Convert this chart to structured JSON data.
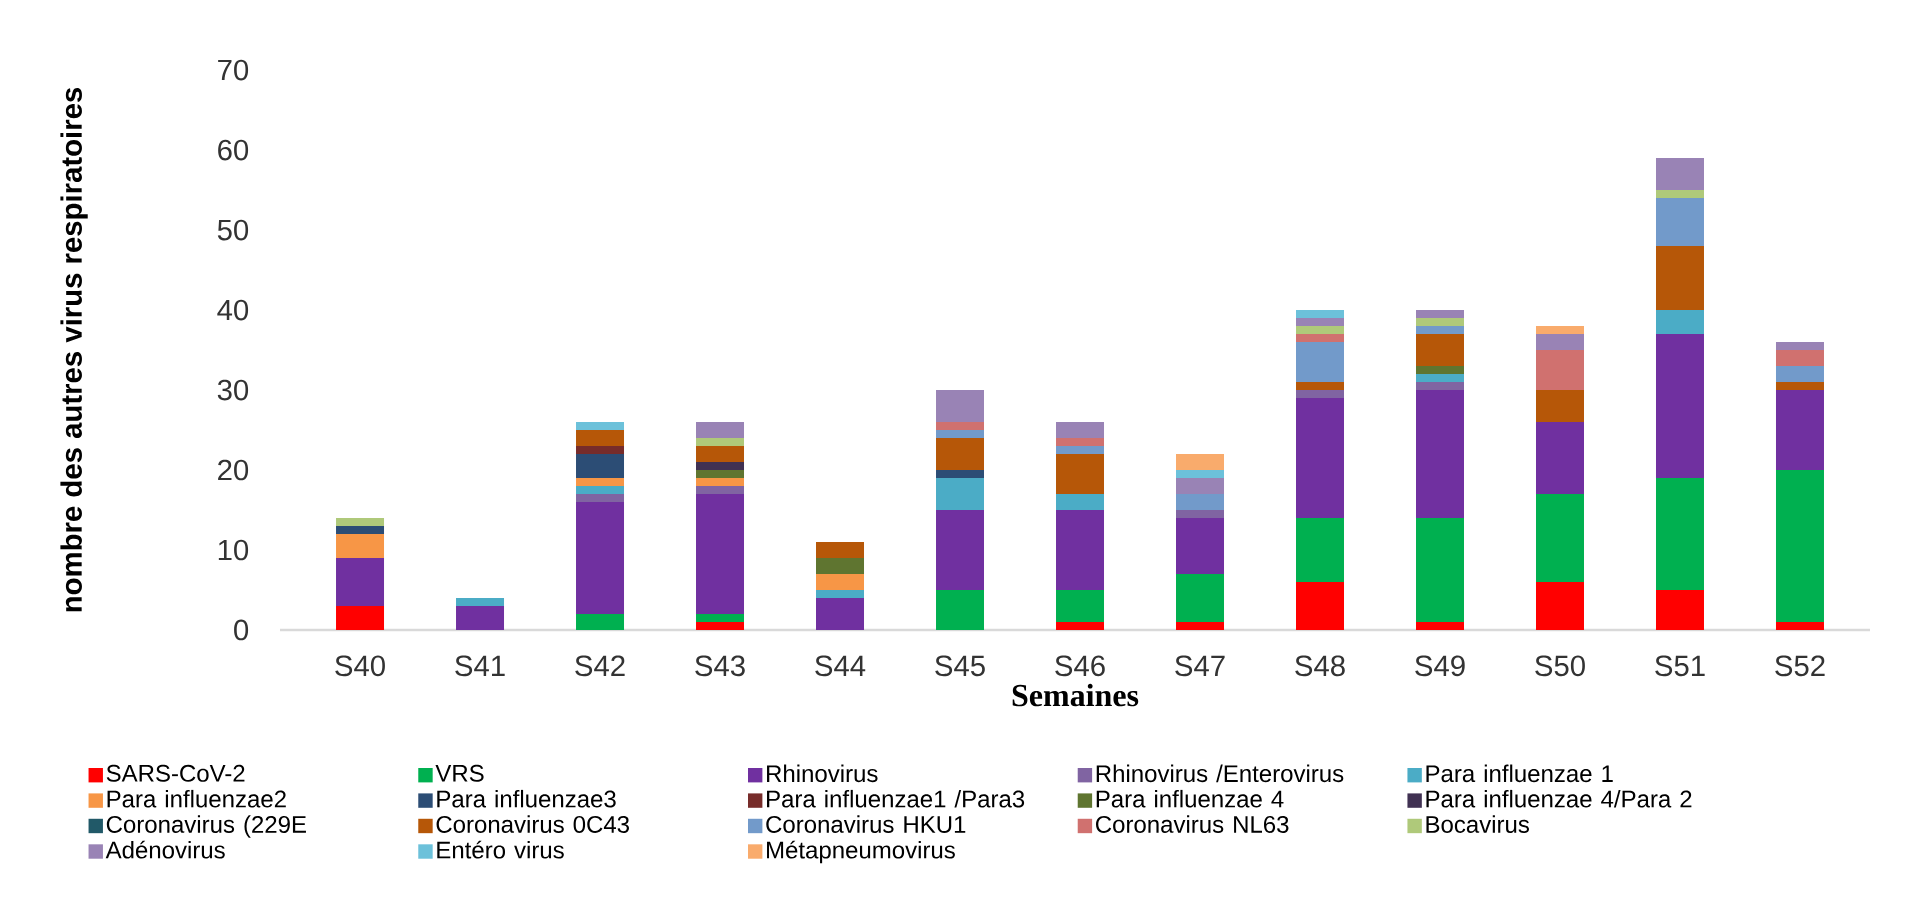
{
  "chart_data": {
    "type": "bar",
    "stacked": true,
    "xlabel": "Semaines",
    "ylabel": "nombre des autres virus respiratoires",
    "categories": [
      "S40",
      "S41",
      "S42",
      "S43",
      "S44",
      "S45",
      "S46",
      "S47",
      "S48",
      "S49",
      "S50",
      "S51",
      "S52"
    ],
    "ylim": [
      0,
      70
    ],
    "yticks": [
      0,
      10,
      20,
      30,
      40,
      50,
      60,
      70
    ],
    "legend": "bottom",
    "series": [
      {
        "name": "SARS-CoV-2",
        "color": "#ff0000",
        "values": [
          3,
          0,
          0,
          1,
          0,
          0,
          1,
          1,
          6,
          1,
          6,
          5,
          1
        ]
      },
      {
        "name": "VRS",
        "color": "#00b050",
        "values": [
          0,
          0,
          2,
          1,
          0,
          5,
          4,
          6,
          8,
          13,
          11,
          14,
          19
        ]
      },
      {
        "name": "Rhinovirus",
        "color": "#7030a0",
        "values": [
          6,
          3,
          14,
          15,
          4,
          10,
          10,
          7,
          15,
          16,
          9,
          18,
          10
        ]
      },
      {
        "name": "Rhinovirus /Enterovirus",
        "color": "#8064a2",
        "values": [
          0,
          0,
          1,
          1,
          0,
          0,
          0,
          1,
          1,
          1,
          0,
          0,
          0
        ]
      },
      {
        "name": "Para influenzae 1",
        "color": "#4bacc6",
        "values": [
          0,
          1,
          1,
          0,
          1,
          4,
          2,
          0,
          0,
          1,
          0,
          3,
          0
        ]
      },
      {
        "name": "Para influenzae2",
        "color": "#f79646",
        "values": [
          3,
          0,
          1,
          1,
          2,
          0,
          0,
          0,
          0,
          0,
          0,
          0,
          0
        ]
      },
      {
        "name": "Para influenzae3",
        "color": "#2c4d75",
        "values": [
          1,
          0,
          3,
          0,
          0,
          1,
          0,
          0,
          0,
          0,
          0,
          0,
          0
        ]
      },
      {
        "name": "Para influenzae1 /Para3",
        "color": "#772c2a",
        "values": [
          0,
          0,
          1,
          0,
          0,
          0,
          0,
          0,
          0,
          0,
          0,
          0,
          0
        ]
      },
      {
        "name": "Para influenzae 4",
        "color": "#5f7530",
        "values": [
          0,
          0,
          0,
          1,
          2,
          0,
          0,
          0,
          0,
          1,
          0,
          0,
          0
        ]
      },
      {
        "name": "Para influenzae 4/Para 2",
        "color": "#403152",
        "values": [
          0,
          0,
          0,
          1,
          0,
          0,
          0,
          0,
          0,
          0,
          0,
          0,
          0
        ]
      },
      {
        "name": "Coronavirus (229E",
        "color": "#215968",
        "values": [
          0,
          0,
          0,
          0,
          0,
          0,
          0,
          0,
          0,
          0,
          0,
          0,
          0
        ]
      },
      {
        "name": "Coronavirus 0C43",
        "color": "#b65708",
        "values": [
          0,
          0,
          2,
          2,
          2,
          4,
          5,
          0,
          1,
          4,
          4,
          8,
          1
        ]
      },
      {
        "name": "Coronavirus HKU1",
        "color": "#729aca",
        "values": [
          0,
          0,
          0,
          0,
          0,
          1,
          1,
          2,
          5,
          1,
          0,
          6,
          2
        ]
      },
      {
        "name": "Coronavirus NL63",
        "color": "#d0716f",
        "values": [
          0,
          0,
          0,
          0,
          0,
          1,
          1,
          0,
          1,
          0,
          5,
          0,
          2
        ]
      },
      {
        "name": "Bocavirus",
        "color": "#afc97a",
        "values": [
          1,
          0,
          0,
          1,
          0,
          0,
          0,
          0,
          1,
          1,
          0,
          1,
          0
        ]
      },
      {
        "name": "Adénovirus",
        "color": "#9983b5",
        "values": [
          0,
          0,
          0,
          2,
          0,
          4,
          2,
          2,
          1,
          1,
          2,
          4,
          1
        ]
      },
      {
        "name": "Entéro virus",
        "color": "#6cc1da",
        "values": [
          0,
          0,
          1,
          0,
          0,
          0,
          0,
          1,
          1,
          0,
          0,
          0,
          0
        ]
      },
      {
        "name": "Métapneumovirus",
        "color": "#f9ab6c",
        "values": [
          0,
          0,
          0,
          0,
          0,
          0,
          0,
          2,
          0,
          0,
          1,
          0,
          0
        ]
      }
    ]
  }
}
